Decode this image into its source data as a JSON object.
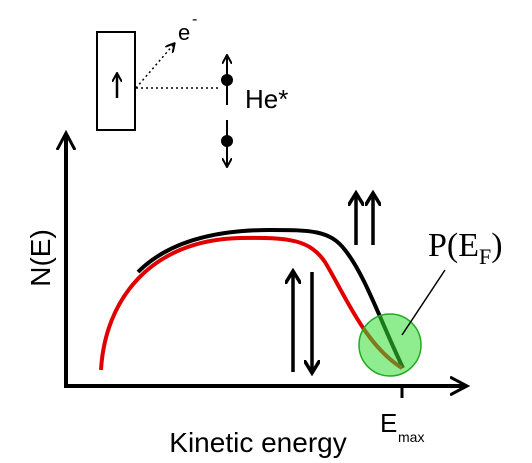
{
  "labels": {
    "electron": "e",
    "electron_charge": "-",
    "helium": "He*",
    "y_axis": "N(E)",
    "x_axis": "Kinetic energy",
    "emax": "E",
    "emax_sub": "max",
    "p_ef": "P(E",
    "p_ef_sub": "F",
    "p_ef_close": ")"
  }
}
